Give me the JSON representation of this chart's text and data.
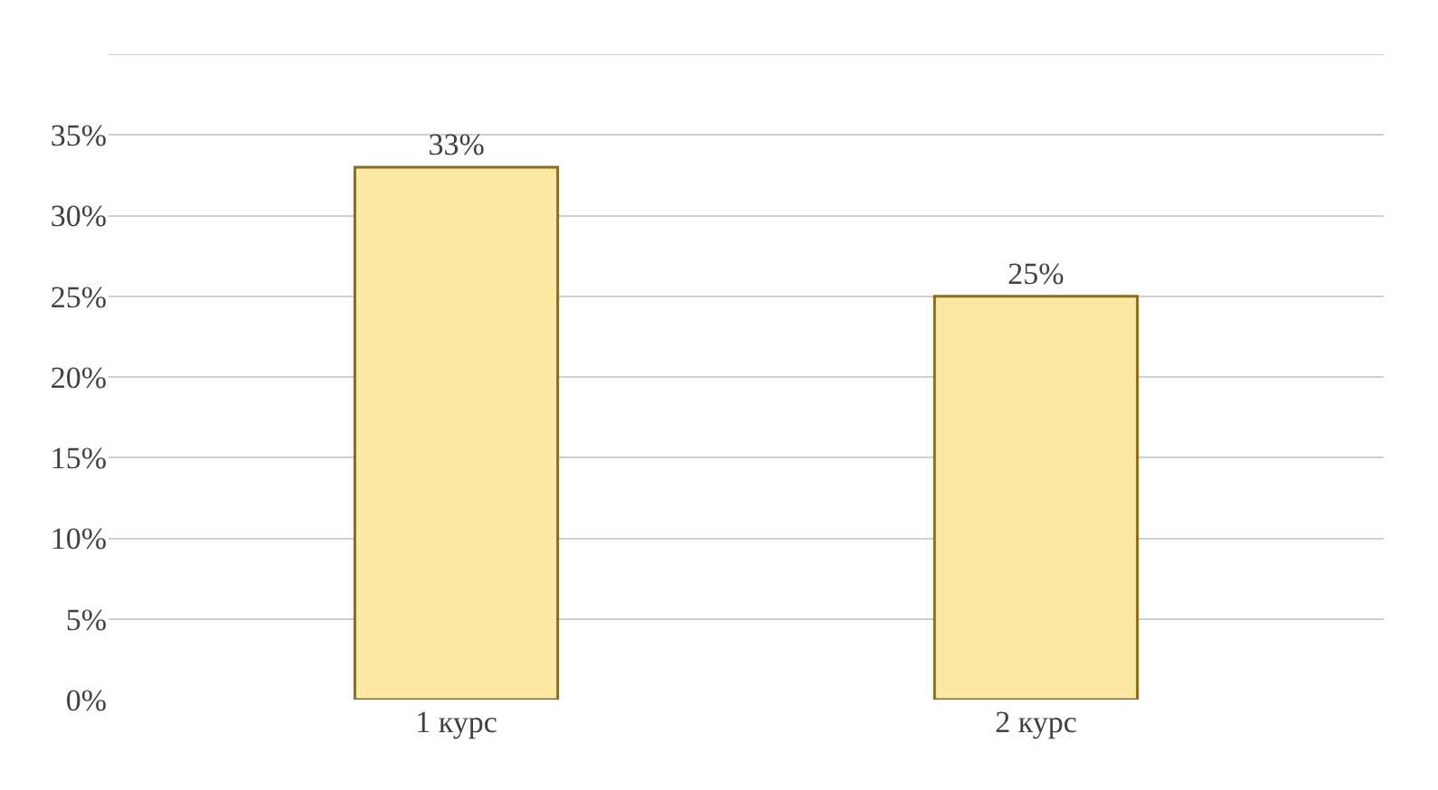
{
  "chart_data": {
    "type": "bar",
    "categories": [
      "1 курс",
      "2 курс"
    ],
    "values": [
      33,
      25
    ],
    "color": "#fbe9a3",
    "value_labels": [
      "33%",
      "25%"
    ],
    "ylim": [
      0,
      40
    ],
    "yticks": [
      {
        "value": 0,
        "label": "0%"
      },
      {
        "value": 5,
        "label": "5%"
      },
      {
        "value": 10,
        "label": "10%"
      },
      {
        "value": 15,
        "label": "15%"
      },
      {
        "value": 20,
        "label": "20%"
      },
      {
        "value": 25,
        "label": "25%"
      },
      {
        "value": 30,
        "label": "30%"
      },
      {
        "value": 35,
        "label": "35%"
      },
      {
        "value": 40,
        "label": null
      }
    ],
    "grid": "y",
    "legend": false
  }
}
